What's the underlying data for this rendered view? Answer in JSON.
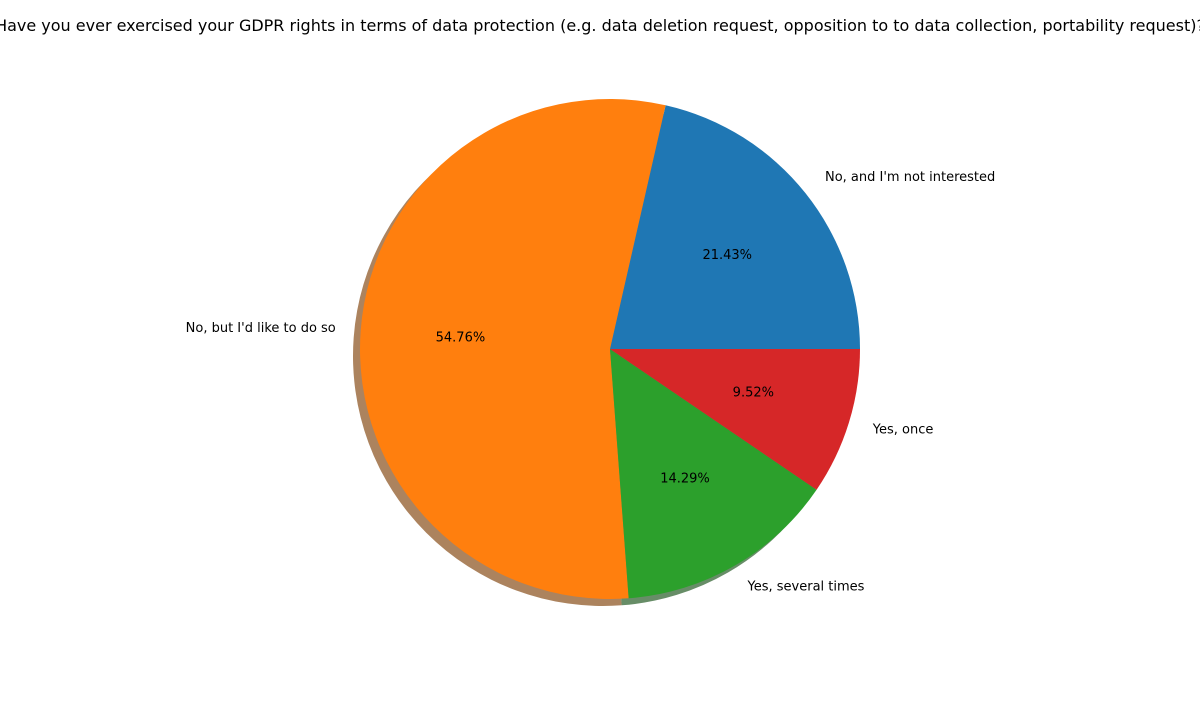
{
  "chart_data": {
    "type": "pie",
    "title": "Have you ever exercised your GDPR rights in terms of data protection (e.g. data deletion request, opposition to to data collection, portability request)?",
    "slices": [
      {
        "label": "No, and I'm not interested",
        "value": 21.43,
        "pct_label": "21.43%",
        "color": "#1f77b4"
      },
      {
        "label": "No, but I'd like to do so",
        "value": 54.76,
        "pct_label": "54.76%",
        "color": "#ff7f0e"
      },
      {
        "label": "Yes, several times",
        "value": 14.29,
        "pct_label": "14.29%",
        "color": "#2ca02c"
      },
      {
        "label": "Yes, once",
        "value": 9.52,
        "pct_label": "9.52%",
        "color": "#d62728"
      }
    ],
    "shadow": true,
    "start_angle_deg": 0,
    "direction": "counterclockwise",
    "legend": "none"
  }
}
